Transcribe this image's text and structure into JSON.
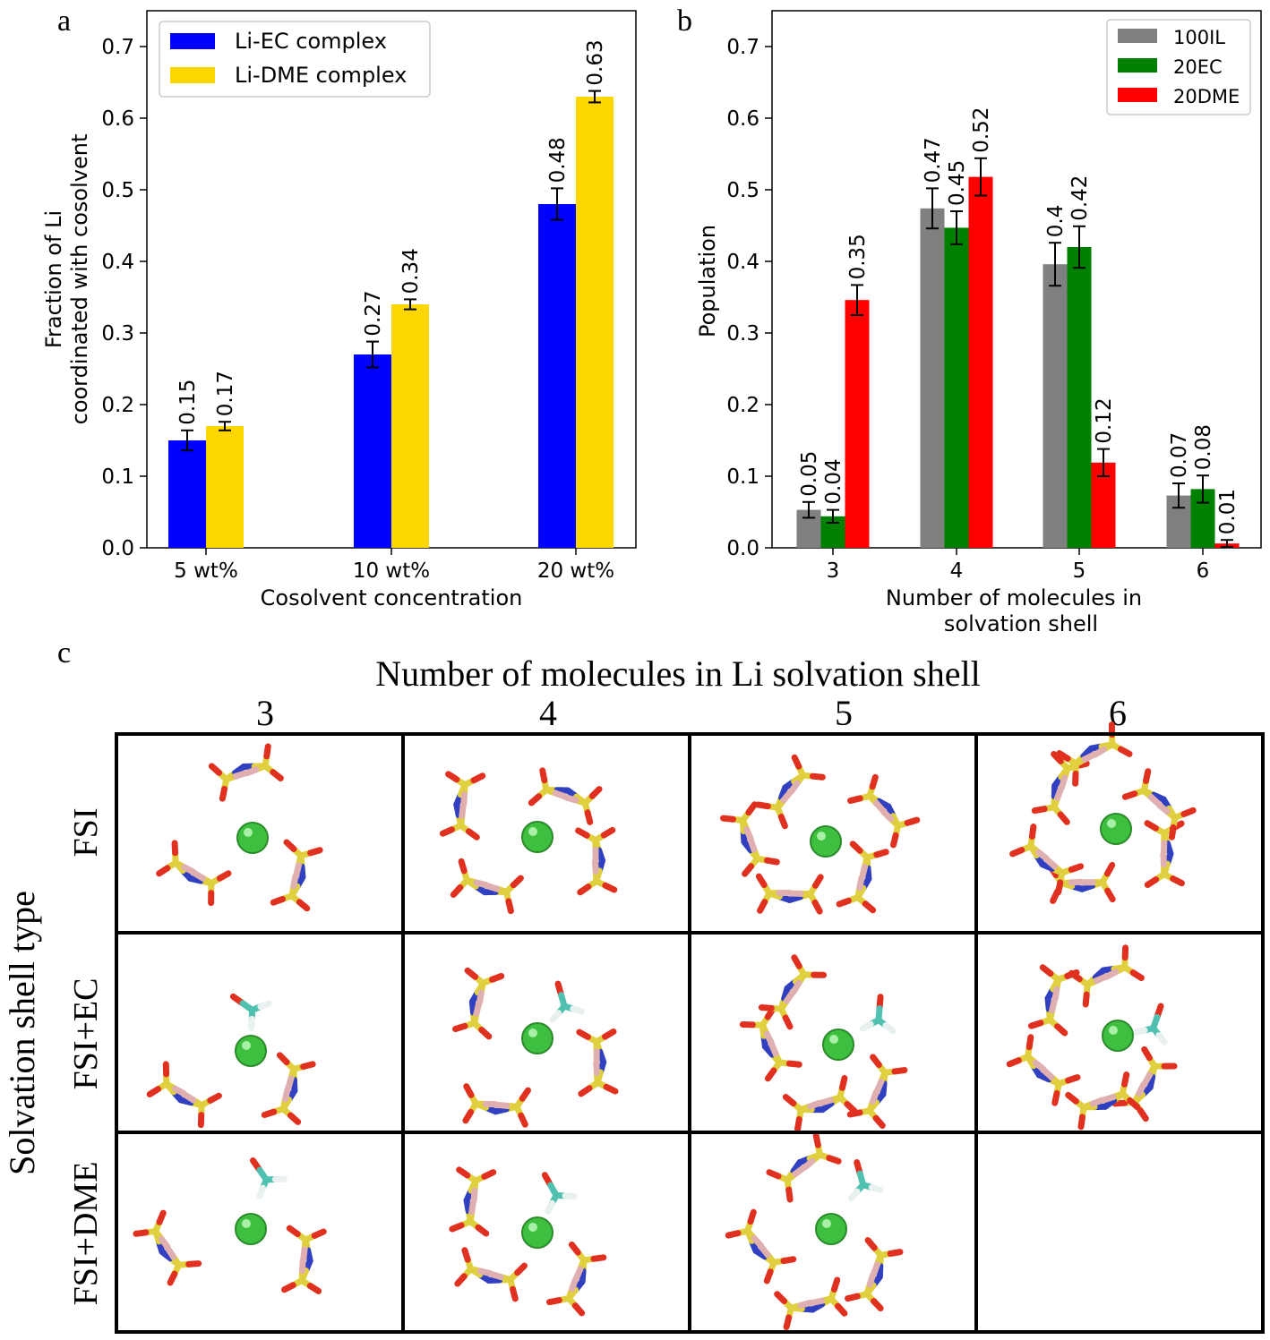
{
  "panels": {
    "a": "a",
    "b": "b",
    "c": "c"
  },
  "chart_data": [
    {
      "type": "bar",
      "panel": "a",
      "categories": [
        "5 wt%",
        "10 wt%",
        "20 wt%"
      ],
      "series": [
        {
          "name": "Li-EC complex",
          "color": "#0000ff",
          "values": [
            0.15,
            0.27,
            0.48
          ],
          "errors": [
            0.014,
            0.018,
            0.022
          ],
          "labels": [
            "0.15",
            "0.27",
            "0.48"
          ]
        },
        {
          "name": "Li-DME complex",
          "color": "#ffd700",
          "values": [
            0.17,
            0.34,
            0.63
          ],
          "errors": [
            0.006,
            0.007,
            0.008
          ],
          "labels": [
            "0.17",
            "0.34",
            "0.63"
          ]
        }
      ],
      "xlabel": "Cosolvent concentration",
      "ylabel_lines": [
        "Fraction of Li",
        "coordinated with cosolvent"
      ],
      "ylim": [
        0,
        0.75
      ],
      "yticks": [
        "0.0",
        "0.1",
        "0.2",
        "0.3",
        "0.4",
        "0.5",
        "0.6",
        "0.7"
      ],
      "legend_position": "top-left",
      "grid": false
    },
    {
      "type": "bar",
      "panel": "b",
      "categories": [
        "3",
        "4",
        "5",
        "6"
      ],
      "series": [
        {
          "name": "100IL",
          "color": "#808080",
          "values": [
            0.053,
            0.474,
            0.396,
            0.073
          ],
          "errors": [
            0.011,
            0.028,
            0.03,
            0.017
          ],
          "labels": [
            "0.05",
            "0.47",
            "0.4",
            "0.07"
          ]
        },
        {
          "name": "20EC",
          "color": "#008000",
          "values": [
            0.044,
            0.447,
            0.42,
            0.082
          ],
          "errors": [
            0.009,
            0.023,
            0.029,
            0.019
          ],
          "labels": [
            "0.04",
            "0.45",
            "0.42",
            "0.08"
          ]
        },
        {
          "name": "20DME",
          "color": "#ff0000",
          "values": [
            0.346,
            0.518,
            0.119,
            0.006
          ],
          "errors": [
            0.021,
            0.026,
            0.019,
            0.005
          ],
          "labels": [
            "0.35",
            "0.52",
            "0.12",
            "0.01"
          ]
        }
      ],
      "xlabel_lines": [
        "Number of molecules in",
        "solvation shell"
      ],
      "ylabel": "Population",
      "ylim": [
        0,
        0.75
      ],
      "yticks": [
        "0.0",
        "0.1",
        "0.2",
        "0.3",
        "0.4",
        "0.5",
        "0.6",
        "0.7"
      ],
      "legend_position": "top-right",
      "grid": false
    }
  ],
  "grid_c": {
    "title": "Number of molecules in Li solvation shell",
    "column_headers": [
      "3",
      "4",
      "5",
      "6"
    ],
    "row_axis_label": "Solvation shell type",
    "row_headers": [
      "FSI",
      "FSI+EC",
      "FSI+DME"
    ],
    "empty_cells": [
      [
        2,
        3
      ]
    ],
    "atom_colors": {
      "lithium": "#3fbf3f",
      "sulfur": "#e0d040",
      "oxygen": "#e03020",
      "nitrogen": "#3040c0",
      "fluorine": "#e0b0b0",
      "carbon": "#50c0b0",
      "hydrogen": "#e8f0f0"
    }
  }
}
